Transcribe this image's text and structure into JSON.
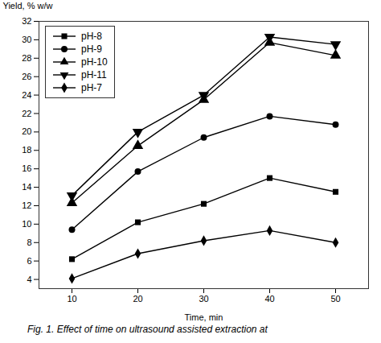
{
  "chart_data": {
    "type": "line",
    "xlabel": "Time, min",
    "ylabel": "Yield, % w/w",
    "caption": "Fig. 1. Effect of time on ultrasound assisted extraction at",
    "x": [
      10,
      20,
      30,
      40,
      50
    ],
    "series": [
      {
        "name": "pH-8",
        "color": "#000000",
        "marker": "square",
        "values": [
          6.2,
          10.2,
          12.2,
          15.0,
          13.5
        ]
      },
      {
        "name": "pH-9",
        "color": "#000000",
        "marker": "circle",
        "values": [
          9.4,
          15.7,
          19.4,
          21.7,
          20.8
        ]
      },
      {
        "name": "pH-10",
        "color": "#000000",
        "marker": "triangle-up",
        "values": [
          12.3,
          18.5,
          23.5,
          29.7,
          28.3
        ]
      },
      {
        "name": "pH-11",
        "color": "#000000",
        "marker": "triangle-down",
        "values": [
          13.1,
          20.0,
          24.0,
          30.3,
          29.5
        ]
      },
      {
        "name": "pH-7",
        "color": "#000000",
        "marker": "diamond",
        "values": [
          4.1,
          6.8,
          8.2,
          9.3,
          8.0
        ]
      }
    ],
    "xlim": [
      5,
      55
    ],
    "ylim": [
      3,
      32
    ],
    "xticks": [
      10,
      20,
      30,
      40,
      50
    ],
    "yticks": [
      4,
      6,
      8,
      10,
      12,
      14,
      16,
      18,
      20,
      22,
      24,
      26,
      28,
      30,
      32
    ],
    "legend": "upper left"
  }
}
